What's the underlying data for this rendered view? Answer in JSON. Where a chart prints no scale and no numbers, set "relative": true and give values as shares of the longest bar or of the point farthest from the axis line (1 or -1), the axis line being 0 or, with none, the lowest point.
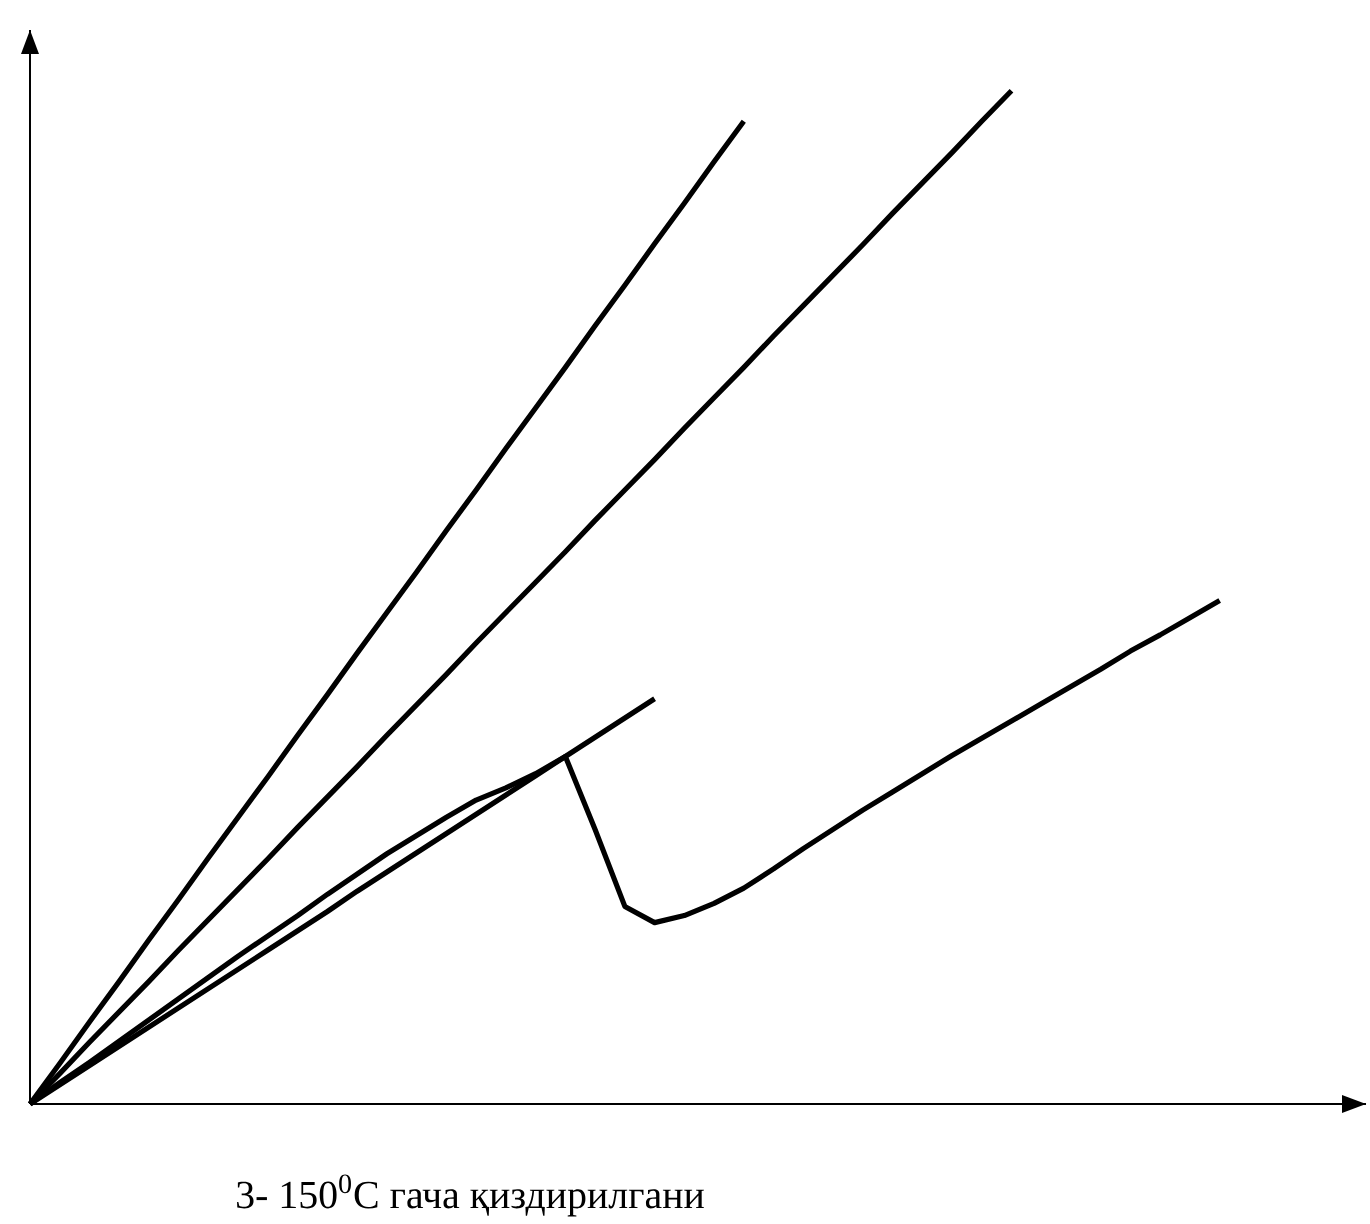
{
  "chart_data": {
    "type": "line",
    "relative": true,
    "marker": "none",
    "line_style": "solid",
    "annotations": [
      "3- 150$^{0}$C гача қиздирилгани"
    ],
    "categories": [
      null,
      null,
      null,
      null,
      null,
      null,
      null,
      null,
      null,
      null,
      null,
      null,
      null,
      null,
      null,
      null,
      null,
      null,
      null,
      null,
      null,
      null,
      null,
      null,
      null,
      null,
      null,
      null,
      null,
      null,
      null,
      null,
      null,
      null,
      null,
      null,
      null,
      null,
      null,
      null,
      null
    ],
    "series": [
      {
        "color": "#000000",
        "values": [
          0,
          0.04,
          0.081,
          0.121,
          0.162,
          0.202,
          0.243,
          0.283,
          0.323,
          0.364,
          0.404,
          0.445,
          0.485,
          0.525,
          0.566,
          0.606,
          0.647,
          0.687,
          0.727,
          0.768,
          0.808,
          0.849,
          0.889,
          0.93,
          0.97,
          null,
          null,
          null,
          null,
          null,
          null,
          null,
          null,
          null,
          null,
          null,
          null,
          null,
          null,
          null,
          null
        ]
      },
      {
        "color": "#000000",
        "values": [
          0,
          0.03,
          0.061,
          0.091,
          0.121,
          0.152,
          0.182,
          0.212,
          0.242,
          0.273,
          0.303,
          0.333,
          0.364,
          0.394,
          0.424,
          0.455,
          0.485,
          0.515,
          0.545,
          0.576,
          0.606,
          0.636,
          0.667,
          0.697,
          0.727,
          0.758,
          0.788,
          0.818,
          0.848,
          0.879,
          0.909,
          0.939,
          0.97,
          1,
          null,
          null,
          null,
          null,
          null,
          null,
          null
        ]
      },
      {
        "color": "#000000",
        "values": [
          0,
          0.019,
          0.038,
          0.057,
          0.076,
          0.095,
          0.114,
          0.133,
          0.152,
          0.171,
          0.19,
          0.21,
          0.229,
          0.248,
          0.267,
          0.286,
          0.305,
          0.324,
          0.343,
          0.362,
          0.381,
          0.4,
          null,
          null,
          null,
          null,
          null,
          null,
          null,
          null,
          null,
          null,
          null,
          null,
          null,
          null,
          null,
          null,
          null,
          null,
          null
        ]
      },
      {
        "color": "#000000",
        "values": [
          0,
          0.021,
          0.041,
          0.062,
          0.083,
          0.104,
          0.125,
          0.146,
          0.166,
          0.186,
          0.207,
          0.227,
          0.247,
          0.265,
          0.283,
          0.3,
          0.312,
          0.326,
          0.343,
          0.271,
          0.195,
          0.179,
          0.186,
          0.198,
          0.213,
          0.232,
          0.252,
          0.271,
          0.29,
          0.308,
          0.326,
          0.344,
          0.361,
          0.378,
          0.395,
          0.412,
          0.429,
          0.447,
          0.463,
          0.48,
          0.497
        ]
      }
    ]
  }
}
